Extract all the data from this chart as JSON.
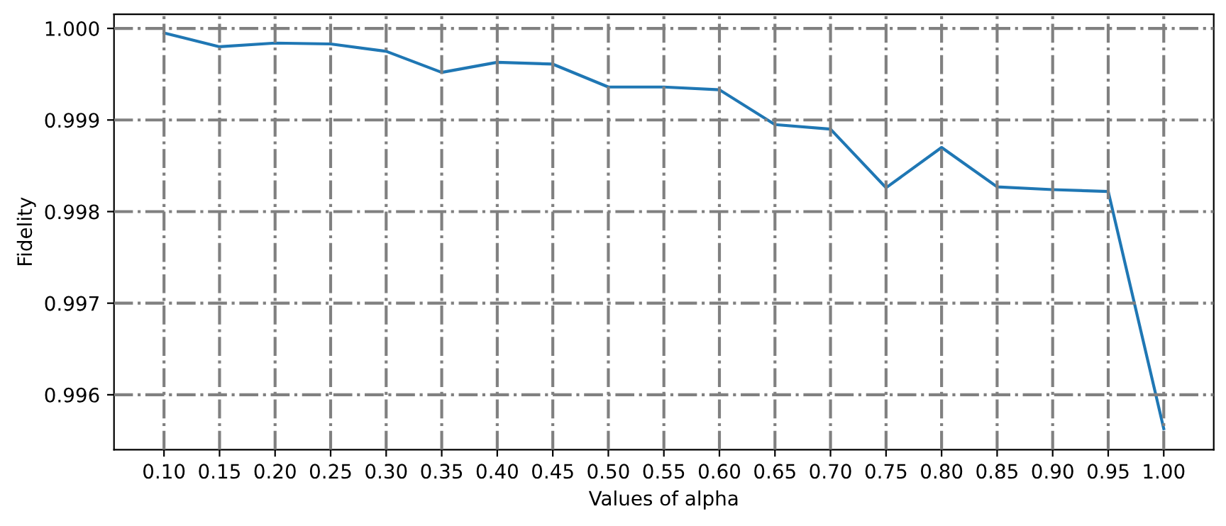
{
  "chart_data": {
    "type": "line",
    "xlabel": "Values of alpha",
    "ylabel": "Fidelity",
    "x": [
      0.1,
      0.15,
      0.2,
      0.25,
      0.3,
      0.35,
      0.4,
      0.45,
      0.5,
      0.55,
      0.6,
      0.65,
      0.7,
      0.75,
      0.8,
      0.85,
      0.9,
      0.95,
      1.0
    ],
    "series": [
      {
        "color": "#1f77b4",
        "values": [
          0.99995,
          0.9998,
          0.99984,
          0.99983,
          0.99975,
          0.99952,
          0.99963,
          0.99961,
          0.99936,
          0.99936,
          0.99933,
          0.99895,
          0.9989,
          0.99826,
          0.9987,
          0.99827,
          0.99824,
          0.99822,
          0.99563
        ]
      }
    ],
    "xlim": [
      0.055,
      1.045
    ],
    "ylim": [
      0.9954,
      1.000155
    ],
    "xticks": [
      {
        "value": 0.1,
        "label": "0.10"
      },
      {
        "value": 0.15,
        "label": "0.15"
      },
      {
        "value": 0.2,
        "label": "0.20"
      },
      {
        "value": 0.25,
        "label": "0.25"
      },
      {
        "value": 0.3,
        "label": "0.30"
      },
      {
        "value": 0.35,
        "label": "0.35"
      },
      {
        "value": 0.4,
        "label": "0.40"
      },
      {
        "value": 0.45,
        "label": "0.45"
      },
      {
        "value": 0.5,
        "label": "0.50"
      },
      {
        "value": 0.55,
        "label": "0.55"
      },
      {
        "value": 0.6,
        "label": "0.60"
      },
      {
        "value": 0.65,
        "label": "0.65"
      },
      {
        "value": 0.7,
        "label": "0.70"
      },
      {
        "value": 0.75,
        "label": "0.75"
      },
      {
        "value": 0.8,
        "label": "0.80"
      },
      {
        "value": 0.85,
        "label": "0.85"
      },
      {
        "value": 0.9,
        "label": "0.90"
      },
      {
        "value": 0.95,
        "label": "0.95"
      },
      {
        "value": 1.0,
        "label": "1.00"
      }
    ],
    "yticks": [
      {
        "value": 0.996,
        "label": "0.996"
      },
      {
        "value": 0.997,
        "label": "0.997"
      },
      {
        "value": 0.998,
        "label": "0.998"
      },
      {
        "value": 0.999,
        "label": "0.999"
      },
      {
        "value": 1.0,
        "label": "1.000"
      }
    ],
    "grid": true
  }
}
